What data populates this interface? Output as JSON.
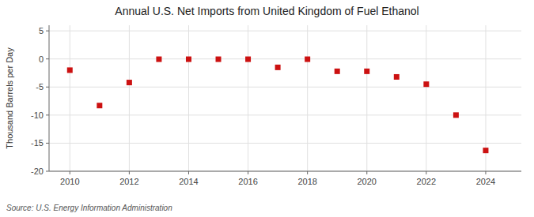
{
  "chart_data": {
    "type": "scatter",
    "title": "Annual U.S. Net Imports from United Kingdom of Fuel Ethanol",
    "ylabel": "Thousand Barrels per Day",
    "annotations": [
      "Source: U.S. Energy Information Administration"
    ],
    "x": [
      2010,
      2011,
      2012,
      2013,
      2014,
      2015,
      2016,
      2017,
      2018,
      2019,
      2020,
      2021,
      2022,
      2023,
      2024
    ],
    "values": [
      -2.0,
      -8.3,
      -4.2,
      -0.05,
      -0.05,
      -0.05,
      -0.05,
      -1.5,
      -0.05,
      -2.2,
      -2.2,
      -3.2,
      -4.5,
      -10.0,
      -16.3
    ],
    "color": "#cc1111",
    "marker": "square",
    "xlim": [
      2009.3,
      2025.2
    ],
    "xticks": [
      2010,
      2012,
      2014,
      2016,
      2018,
      2020,
      2022,
      2024
    ],
    "ylim": [
      -20,
      6
    ],
    "yticks": [
      -20,
      -15,
      -10,
      -5,
      0,
      5
    ],
    "grid": true
  }
}
